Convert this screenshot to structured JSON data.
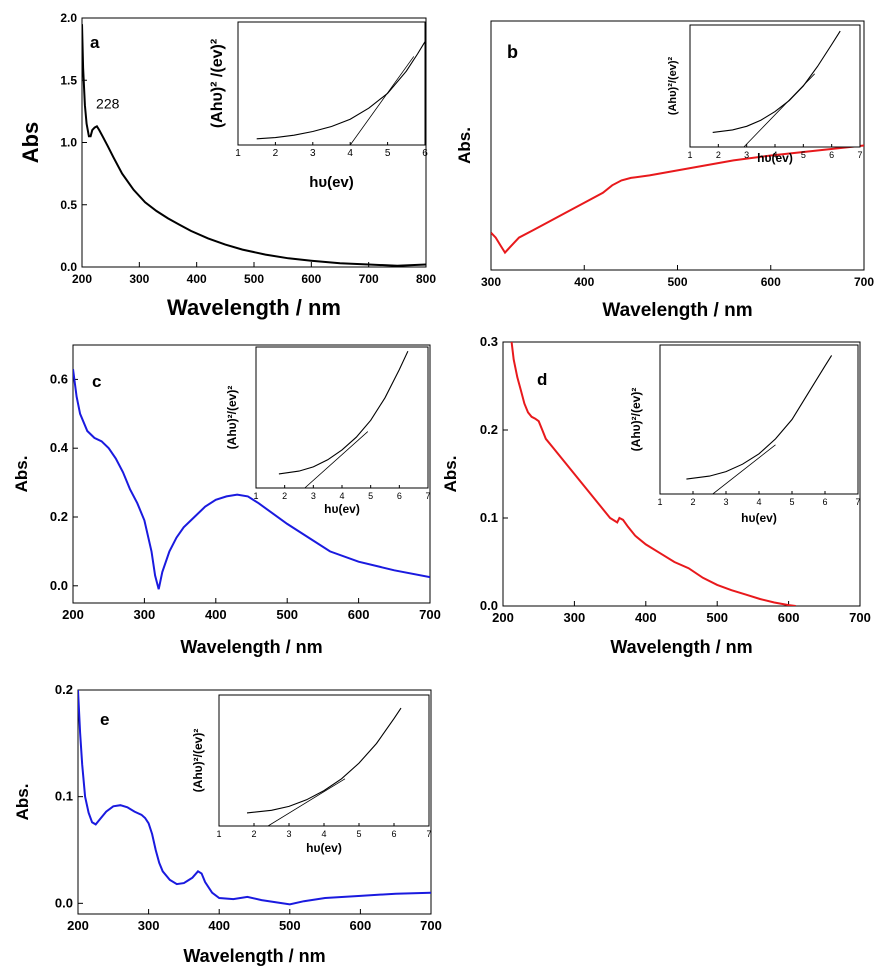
{
  "chart_data": [
    {
      "panel": "a",
      "type": "line",
      "xlabel": "Wavelength / nm",
      "ylabel": "Abs",
      "xlim": [
        200,
        800
      ],
      "ylim": [
        0,
        2.0
      ],
      "xticks": [
        "200",
        "300",
        "400",
        "500",
        "600",
        "700",
        "800"
      ],
      "yticks": [
        "0.0",
        "0.5",
        "1.0",
        "1.5",
        "2.0"
      ],
      "annotations": [
        {
          "text": "228",
          "x": 228,
          "y": 1.16
        }
      ],
      "series": [
        {
          "color": "#000000",
          "values": [
            [
              200,
              1.95
            ],
            [
              202,
              1.6
            ],
            [
              205,
              1.3
            ],
            [
              208,
              1.15
            ],
            [
              212,
              1.05
            ],
            [
              215,
              1.05
            ],
            [
              218,
              1.1
            ],
            [
              222,
              1.12
            ],
            [
              226,
              1.13
            ],
            [
              230,
              1.1
            ],
            [
              236,
              1.05
            ],
            [
              245,
              0.97
            ],
            [
              255,
              0.88
            ],
            [
              270,
              0.75
            ],
            [
              290,
              0.62
            ],
            [
              310,
              0.52
            ],
            [
              330,
              0.45
            ],
            [
              350,
              0.39
            ],
            [
              370,
              0.34
            ],
            [
              390,
              0.29
            ],
            [
              420,
              0.23
            ],
            [
              450,
              0.18
            ],
            [
              480,
              0.14
            ],
            [
              520,
              0.1
            ],
            [
              560,
              0.07
            ],
            [
              600,
              0.05
            ],
            [
              650,
              0.03
            ],
            [
              700,
              0.02
            ],
            [
              750,
              0.01
            ],
            [
              800,
              0.02
            ]
          ]
        }
      ],
      "inset": {
        "xlabel": "hυ(ev)",
        "ylabel": "(Ahυ)² /(ev)²",
        "xlim": [
          1,
          6
        ],
        "xticks": [
          "1",
          "2",
          "3",
          "4",
          "5",
          "6"
        ],
        "curve": [
          [
            1.5,
            0.05
          ],
          [
            2,
            0.06
          ],
          [
            2.5,
            0.08
          ],
          [
            3,
            0.11
          ],
          [
            3.5,
            0.15
          ],
          [
            4,
            0.21
          ],
          [
            4.5,
            0.3
          ],
          [
            5,
            0.42
          ],
          [
            5.5,
            0.6
          ],
          [
            5.8,
            0.74
          ],
          [
            6,
            0.84
          ]
        ],
        "fit_line": [
          [
            4.0,
            0.0
          ],
          [
            5.7,
            0.72
          ]
        ]
      }
    },
    {
      "panel": "b",
      "type": "line",
      "xlabel": "Wavelength / nm",
      "ylabel": "Abs.",
      "xlim": [
        300,
        700
      ],
      "ylim": [
        0,
        1
      ],
      "xticks": [
        "300",
        "400",
        "500",
        "600",
        "700"
      ],
      "yticks": [],
      "series": [
        {
          "color": "#e8191c",
          "values": [
            [
              300,
              0.15
            ],
            [
              305,
              0.13
            ],
            [
              310,
              0.1
            ],
            [
              315,
              0.07
            ],
            [
              320,
              0.09
            ],
            [
              330,
              0.13
            ],
            [
              345,
              0.16
            ],
            [
              360,
              0.19
            ],
            [
              380,
              0.23
            ],
            [
              400,
              0.27
            ],
            [
              420,
              0.31
            ],
            [
              430,
              0.34
            ],
            [
              440,
              0.36
            ],
            [
              450,
              0.37
            ],
            [
              470,
              0.38
            ],
            [
              500,
              0.4
            ],
            [
              530,
              0.42
            ],
            [
              560,
              0.44
            ],
            [
              600,
              0.46
            ],
            [
              650,
              0.48
            ],
            [
              700,
              0.5
            ]
          ]
        }
      ],
      "inset": {
        "xlabel": "hυ(ev)",
        "ylabel": "(Ahυ)²/(ev)²",
        "xlim": [
          1,
          7
        ],
        "xticks": [
          "1",
          "2",
          "3",
          "4",
          "5",
          "6",
          "7"
        ],
        "curve": [
          [
            1.8,
            0.12
          ],
          [
            2.5,
            0.14
          ],
          [
            3,
            0.17
          ],
          [
            3.5,
            0.22
          ],
          [
            4,
            0.29
          ],
          [
            4.5,
            0.38
          ],
          [
            5,
            0.5
          ],
          [
            5.5,
            0.66
          ],
          [
            6,
            0.84
          ],
          [
            6.3,
            0.95
          ]
        ],
        "fit_line": [
          [
            2.9,
            0.0
          ],
          [
            5.4,
            0.6
          ]
        ]
      }
    },
    {
      "panel": "c",
      "type": "line",
      "xlabel": "Wavelength / nm",
      "ylabel": "Abs.",
      "xlim": [
        200,
        700
      ],
      "ylim": [
        -0.05,
        0.7
      ],
      "xticks": [
        "200",
        "300",
        "400",
        "500",
        "600",
        "700"
      ],
      "yticks": [
        "0.0",
        "0.2",
        "0.4",
        "0.6"
      ],
      "series": [
        {
          "color": "#1a1adf",
          "values": [
            [
              200,
              0.63
            ],
            [
              205,
              0.55
            ],
            [
              210,
              0.5
            ],
            [
              220,
              0.45
            ],
            [
              230,
              0.43
            ],
            [
              240,
              0.42
            ],
            [
              250,
              0.4
            ],
            [
              260,
              0.37
            ],
            [
              270,
              0.33
            ],
            [
              280,
              0.28
            ],
            [
              290,
              0.24
            ],
            [
              300,
              0.19
            ],
            [
              310,
              0.1
            ],
            [
              315,
              0.03
            ],
            [
              320,
              -0.01
            ],
            [
              325,
              0.04
            ],
            [
              335,
              0.1
            ],
            [
              345,
              0.14
            ],
            [
              355,
              0.17
            ],
            [
              370,
              0.2
            ],
            [
              385,
              0.23
            ],
            [
              400,
              0.25
            ],
            [
              415,
              0.26
            ],
            [
              430,
              0.265
            ],
            [
              445,
              0.26
            ],
            [
              460,
              0.24
            ],
            [
              480,
              0.21
            ],
            [
              500,
              0.18
            ],
            [
              530,
              0.14
            ],
            [
              560,
              0.1
            ],
            [
              600,
              0.07
            ],
            [
              650,
              0.045
            ],
            [
              700,
              0.025
            ]
          ]
        }
      ],
      "inset": {
        "xlabel": "hυ(ev)",
        "ylabel": "(Ahυ)²/(ev)²",
        "xlim": [
          1,
          7
        ],
        "xticks": [
          "1",
          "2",
          "3",
          "4",
          "5",
          "6",
          "7"
        ],
        "curve": [
          [
            1.8,
            0.1
          ],
          [
            2.5,
            0.12
          ],
          [
            3,
            0.15
          ],
          [
            3.5,
            0.2
          ],
          [
            4,
            0.27
          ],
          [
            4.5,
            0.36
          ],
          [
            5,
            0.48
          ],
          [
            5.5,
            0.64
          ],
          [
            6,
            0.84
          ],
          [
            6.3,
            0.97
          ]
        ],
        "fit_line": [
          [
            2.7,
            0.0
          ],
          [
            4.9,
            0.4
          ]
        ]
      }
    },
    {
      "panel": "d",
      "type": "line",
      "xlabel": "Wavelength / nm",
      "ylabel": "Abs.",
      "xlim": [
        200,
        700
      ],
      "ylim": [
        0,
        0.3
      ],
      "xticks": [
        "200",
        "300",
        "400",
        "500",
        "600",
        "700"
      ],
      "yticks": [
        "0.0",
        "0.1",
        "0.2",
        "0.3"
      ],
      "series": [
        {
          "color": "#e8191c",
          "values": [
            [
              212,
              0.3
            ],
            [
              215,
              0.28
            ],
            [
              220,
              0.26
            ],
            [
              225,
              0.245
            ],
            [
              230,
              0.23
            ],
            [
              235,
              0.22
            ],
            [
              240,
              0.215
            ],
            [
              245,
              0.213
            ],
            [
              250,
              0.21
            ],
            [
              255,
              0.2
            ],
            [
              260,
              0.19
            ],
            [
              270,
              0.18
            ],
            [
              280,
              0.17
            ],
            [
              290,
              0.16
            ],
            [
              300,
              0.15
            ],
            [
              310,
              0.14
            ],
            [
              320,
              0.13
            ],
            [
              330,
              0.12
            ],
            [
              340,
              0.11
            ],
            [
              350,
              0.1
            ],
            [
              360,
              0.095
            ],
            [
              363,
              0.1
            ],
            [
              368,
              0.098
            ],
            [
              375,
              0.09
            ],
            [
              385,
              0.08
            ],
            [
              400,
              0.07
            ],
            [
              420,
              0.06
            ],
            [
              440,
              0.05
            ],
            [
              460,
              0.043
            ],
            [
              480,
              0.032
            ],
            [
              500,
              0.024
            ],
            [
              520,
              0.018
            ],
            [
              540,
              0.013
            ],
            [
              560,
              0.008
            ],
            [
              580,
              0.004
            ],
            [
              600,
              0.001
            ],
            [
              610,
              0.0
            ]
          ]
        }
      ],
      "inset": {
        "xlabel": "hυ(ev)",
        "ylabel": "(Ahυ)²/(ev)²",
        "xlim": [
          1,
          7
        ],
        "xticks": [
          "1",
          "2",
          "3",
          "4",
          "5",
          "6",
          "7"
        ],
        "curve": [
          [
            1.8,
            0.1
          ],
          [
            2.5,
            0.12
          ],
          [
            3,
            0.15
          ],
          [
            3.5,
            0.2
          ],
          [
            4,
            0.27
          ],
          [
            4.5,
            0.37
          ],
          [
            5,
            0.5
          ],
          [
            5.5,
            0.68
          ],
          [
            6,
            0.86
          ],
          [
            6.2,
            0.93
          ]
        ],
        "fit_line": [
          [
            2.6,
            0.0
          ],
          [
            4.5,
            0.33
          ]
        ]
      }
    },
    {
      "panel": "e",
      "type": "line",
      "xlabel": "Wavelength / nm",
      "ylabel": "Abs.",
      "xlim": [
        200,
        700
      ],
      "ylim": [
        -0.01,
        0.2
      ],
      "xticks": [
        "200",
        "300",
        "400",
        "500",
        "600",
        "700"
      ],
      "yticks": [
        "0.0",
        "0.1",
        "0.2"
      ],
      "series": [
        {
          "color": "#1a1adf",
          "values": [
            [
              200,
              0.2
            ],
            [
              203,
              0.16
            ],
            [
              206,
              0.13
            ],
            [
              210,
              0.1
            ],
            [
              215,
              0.085
            ],
            [
              220,
              0.076
            ],
            [
              225,
              0.074
            ],
            [
              230,
              0.078
            ],
            [
              240,
              0.086
            ],
            [
              250,
              0.091
            ],
            [
              260,
              0.092
            ],
            [
              270,
              0.09
            ],
            [
              280,
              0.086
            ],
            [
              290,
              0.083
            ],
            [
              295,
              0.08
            ],
            [
              300,
              0.075
            ],
            [
              305,
              0.065
            ],
            [
              310,
              0.05
            ],
            [
              315,
              0.038
            ],
            [
              320,
              0.03
            ],
            [
              330,
              0.022
            ],
            [
              340,
              0.018
            ],
            [
              350,
              0.019
            ],
            [
              355,
              0.021
            ],
            [
              362,
              0.024
            ],
            [
              370,
              0.03
            ],
            [
              375,
              0.028
            ],
            [
              380,
              0.02
            ],
            [
              390,
              0.01
            ],
            [
              400,
              0.005
            ],
            [
              420,
              0.004
            ],
            [
              440,
              0.006
            ],
            [
              460,
              0.003
            ],
            [
              480,
              0.001
            ],
            [
              500,
              -0.001
            ],
            [
              520,
              0.002
            ],
            [
              550,
              0.005
            ],
            [
              600,
              0.007
            ],
            [
              650,
              0.009
            ],
            [
              700,
              0.01
            ]
          ]
        }
      ],
      "inset": {
        "xlabel": "hυ(ev)",
        "ylabel": "(Ahυ)²/(ev)²",
        "xlim": [
          1,
          7
        ],
        "xticks": [
          "1",
          "2",
          "3",
          "4",
          "5",
          "6",
          "7"
        ],
        "curve": [
          [
            1.8,
            0.1
          ],
          [
            2.5,
            0.12
          ],
          [
            3,
            0.15
          ],
          [
            3.5,
            0.2
          ],
          [
            4,
            0.27
          ],
          [
            4.5,
            0.36
          ],
          [
            5,
            0.48
          ],
          [
            5.5,
            0.63
          ],
          [
            6,
            0.82
          ],
          [
            6.2,
            0.9
          ]
        ],
        "fit_line": [
          [
            2.4,
            0.0
          ],
          [
            4.6,
            0.36
          ]
        ]
      }
    }
  ]
}
